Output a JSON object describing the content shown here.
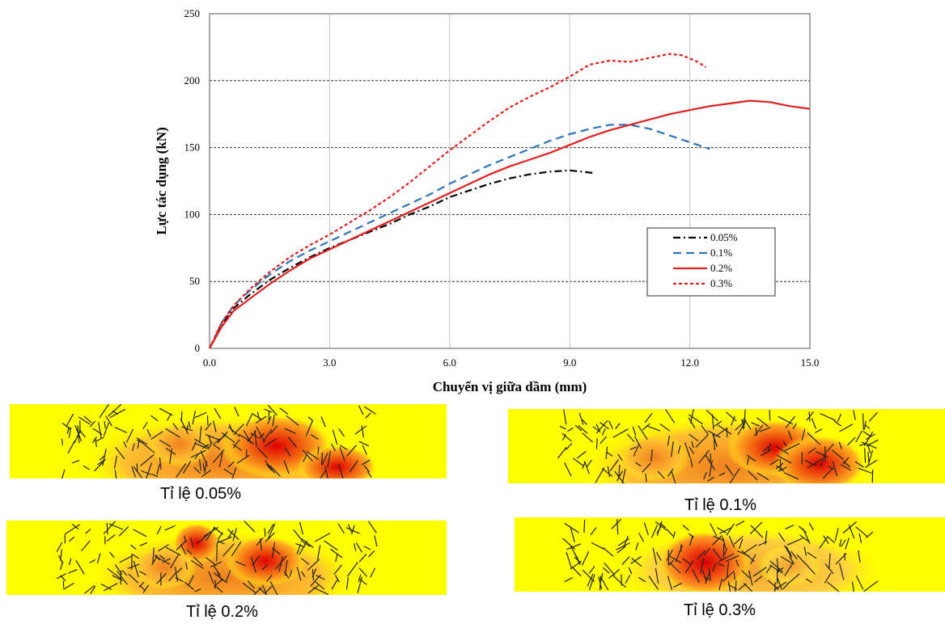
{
  "chart_data": {
    "type": "line",
    "xlabel": "Chuyển vị giữa dầm (mm)",
    "ylabel": "Lực tác dụng (kN)",
    "xlim": [
      0,
      15
    ],
    "ylim": [
      0,
      250
    ],
    "xticks": [
      "0.0",
      "3.0",
      "6.0",
      "9.0",
      "12.0",
      "15.0"
    ],
    "yticks": [
      "0",
      "50",
      "100",
      "150",
      "200",
      "250"
    ],
    "grid": "horizontal dashed at 50, 100, 150, 200",
    "legend_position": "center-right",
    "series": [
      {
        "name": "0.05%",
        "color": "#000000",
        "style": "dashdot",
        "x": [
          0,
          0.3,
          0.6,
          1.0,
          1.5,
          2.0,
          2.5,
          3.0,
          3.5,
          4.0,
          4.5,
          5.0,
          5.5,
          6.0,
          6.5,
          7.0,
          7.5,
          8.0,
          8.5,
          9.0,
          9.3,
          9.6
        ],
        "y": [
          0,
          18,
          30,
          40,
          51,
          60,
          68,
          75,
          81,
          87,
          93,
          100,
          106,
          113,
          118,
          123,
          127,
          130,
          132,
          133,
          132,
          131
        ]
      },
      {
        "name": "0.1%",
        "color": "#2E75B6",
        "style": "dashed",
        "x": [
          0,
          0.3,
          0.6,
          1.0,
          1.5,
          2.0,
          2.5,
          3.0,
          3.5,
          4.0,
          4.5,
          5.0,
          5.5,
          6.0,
          6.5,
          7.0,
          7.5,
          8.0,
          8.5,
          9.0,
          9.5,
          10.0,
          10.5,
          11.0,
          11.5,
          12.0,
          12.5
        ],
        "y": [
          0,
          19,
          32,
          43,
          55,
          65,
          73,
          80,
          87,
          94,
          101,
          108,
          115,
          123,
          130,
          137,
          143,
          149,
          155,
          160,
          164,
          167,
          167,
          164,
          159,
          154,
          149
        ]
      },
      {
        "name": "0.2%",
        "color": "#E02020",
        "style": "solid",
        "x": [
          0,
          0.3,
          0.6,
          1.0,
          1.5,
          2.0,
          2.5,
          3.0,
          3.5,
          4.0,
          4.5,
          5.0,
          5.5,
          6.0,
          6.5,
          7.0,
          7.5,
          8.0,
          8.5,
          9.0,
          9.5,
          10.0,
          10.5,
          11.0,
          11.5,
          12.0,
          12.5,
          13.0,
          13.5,
          14.0,
          14.5,
          15.0
        ],
        "y": [
          0,
          16,
          28,
          37,
          48,
          58,
          67,
          74,
          81,
          88,
          95,
          102,
          109,
          116,
          123,
          130,
          136,
          141,
          146,
          152,
          158,
          163,
          167,
          171,
          175,
          178,
          181,
          183,
          185,
          184,
          181,
          179
        ]
      },
      {
        "name": "0.3%",
        "color": "#E02020",
        "style": "dotted",
        "x": [
          0,
          0.3,
          0.6,
          1.0,
          1.5,
          2.0,
          2.5,
          3.0,
          3.5,
          4.0,
          4.5,
          5.0,
          5.5,
          6.0,
          6.5,
          7.0,
          7.5,
          8.0,
          8.5,
          9.0,
          9.5,
          10.0,
          10.5,
          11.0,
          11.5,
          11.8,
          12.2,
          12.4
        ],
        "y": [
          0,
          19,
          32,
          44,
          57,
          68,
          77,
          85,
          94,
          103,
          113,
          124,
          136,
          148,
          159,
          170,
          180,
          188,
          195,
          203,
          212,
          215,
          214,
          217,
          220,
          219,
          214,
          210
        ]
      }
    ]
  },
  "panels": [
    {
      "label": "Tỉ lệ 0.05%"
    },
    {
      "label": "Tỉ lệ 0.1%"
    },
    {
      "label": "Tỉ lệ 0.2%"
    },
    {
      "label": "Tỉ lệ 0.3%"
    }
  ]
}
